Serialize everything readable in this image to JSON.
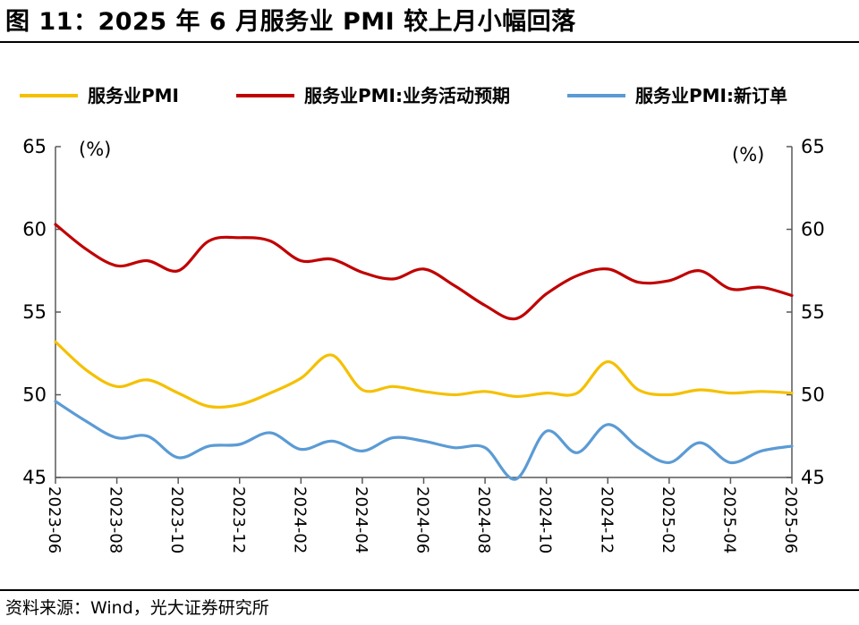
{
  "figure": {
    "title": "图 11：2025 年 6 月服务业 PMI 较上月小幅回落",
    "source": "资料来源：Wind，光大证券研究所"
  },
  "chart_data": {
    "type": "line",
    "y_unit_left": "(%)",
    "y_unit_right": "(%)",
    "ylim": [
      45,
      65
    ],
    "yticks": [
      45,
      50,
      55,
      60,
      65
    ],
    "legend_position": "top",
    "grid": false,
    "x": [
      "2023-06",
      "2023-07",
      "2023-08",
      "2023-09",
      "2023-10",
      "2023-11",
      "2023-12",
      "2024-01",
      "2024-02",
      "2024-03",
      "2024-04",
      "2024-05",
      "2024-06",
      "2024-07",
      "2024-08",
      "2024-09",
      "2024-10",
      "2024-11",
      "2024-12",
      "2025-01",
      "2025-02",
      "2025-03",
      "2025-04",
      "2025-05",
      "2025-06"
    ],
    "x_tick_labels": [
      "2023-06",
      "2023-08",
      "2023-10",
      "2023-12",
      "2024-02",
      "2024-04",
      "2024-06",
      "2024-08",
      "2024-10",
      "2024-12",
      "2025-02",
      "2025-04",
      "2025-06"
    ],
    "series": [
      {
        "name": "服务业PMI",
        "color": "#F5C000",
        "values": [
          53.2,
          51.5,
          50.5,
          50.9,
          50.1,
          49.3,
          49.4,
          50.1,
          51.0,
          52.4,
          50.3,
          50.5,
          50.2,
          50.0,
          50.2,
          49.9,
          50.1,
          50.1,
          52.0,
          50.3,
          50.0,
          50.3,
          50.1,
          50.2,
          50.1
        ]
      },
      {
        "name": "服务业PMI:业务活动预期",
        "color": "#C00000",
        "values": [
          60.3,
          58.8,
          57.8,
          58.1,
          57.5,
          59.3,
          59.5,
          59.3,
          58.1,
          58.2,
          57.4,
          57.0,
          57.6,
          56.6,
          55.4,
          54.6,
          56.1,
          57.2,
          57.6,
          56.8,
          56.9,
          57.5,
          56.4,
          56.5,
          56.0
        ]
      },
      {
        "name": "服务业PMI:新订单",
        "color": "#5B9BD5",
        "values": [
          49.6,
          48.4,
          47.4,
          47.5,
          46.2,
          46.9,
          47.0,
          47.7,
          46.7,
          47.2,
          46.6,
          47.4,
          47.2,
          46.8,
          46.8,
          44.9,
          47.8,
          46.5,
          48.2,
          46.8,
          45.9,
          47.1,
          45.9,
          46.6,
          46.9
        ]
      }
    ]
  }
}
